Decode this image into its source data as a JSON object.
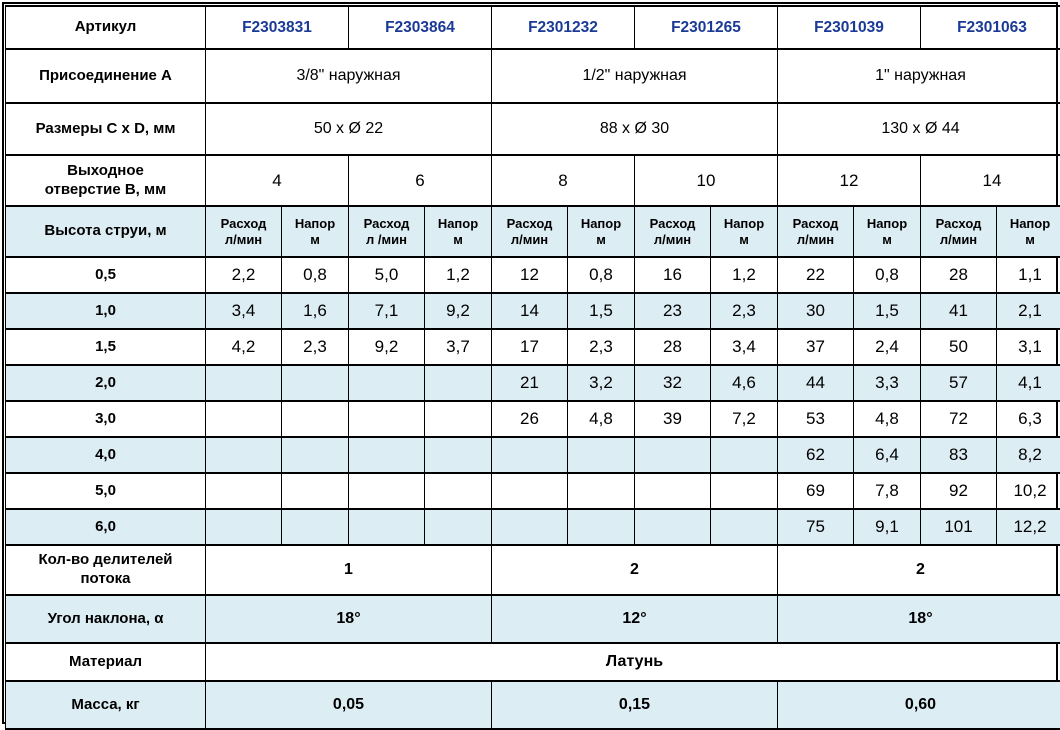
{
  "header": {
    "article": {
      "label": "Артикул",
      "codes": [
        "F2303831",
        "F2303864",
        "F2301232",
        "F2301265",
        "F2301039",
        "F2301063"
      ]
    },
    "connection": {
      "label": "Присоединение A",
      "values": [
        "3/8\" наружная",
        "1/2\" наружная",
        "1\" наружная"
      ]
    },
    "dimensions": {
      "label": "Размеры C x D, мм",
      "values": [
        "50 x Ø 22",
        "88 x Ø 30",
        "130 x Ø 44"
      ]
    },
    "outlet": {
      "label": "Выходное\nотверстие B, мм",
      "values": [
        "4",
        "6",
        "8",
        "10",
        "12",
        "14"
      ]
    },
    "jet": {
      "label": "Высота струи, м",
      "subcols": [
        "Расход\nл/мин",
        "Напор\nм",
        "Расход\nл /мин",
        "Напор\nм",
        "Расход\nл/мин",
        "Напор\nм",
        "Расход\nл/мин",
        "Напор\nм",
        "Расход\nл/мин",
        "Напор\nм",
        "Расход\nл/мин",
        "Напор\nм"
      ]
    }
  },
  "data_rows": [
    {
      "height": "0,5",
      "values": [
        "2,2",
        "0,8",
        "5,0",
        "1,2",
        "12",
        "0,8",
        "16",
        "1,2",
        "22",
        "0,8",
        "28",
        "1,1"
      ]
    },
    {
      "height": "1,0",
      "values": [
        "3,4",
        "1,6",
        "7,1",
        "9,2",
        "14",
        "1,5",
        "23",
        "2,3",
        "30",
        "1,5",
        "41",
        "2,1"
      ]
    },
    {
      "height": "1,5",
      "values": [
        "4,2",
        "2,3",
        "9,2",
        "3,7",
        "17",
        "2,3",
        "28",
        "3,4",
        "37",
        "2,4",
        "50",
        "3,1"
      ]
    },
    {
      "height": "2,0",
      "values": [
        "",
        "",
        "",
        "",
        "21",
        "3,2",
        "32",
        "4,6",
        "44",
        "3,3",
        "57",
        "4,1"
      ]
    },
    {
      "height": "3,0",
      "values": [
        "",
        "",
        "",
        "",
        "26",
        "4,8",
        "39",
        "7,2",
        "53",
        "4,8",
        "72",
        "6,3"
      ]
    },
    {
      "height": "4,0",
      "values": [
        "",
        "",
        "",
        "",
        "",
        "",
        "",
        "",
        "62",
        "6,4",
        "83",
        "8,2"
      ]
    },
    {
      "height": "5,0",
      "values": [
        "",
        "",
        "",
        "",
        "",
        "",
        "",
        "",
        "69",
        "7,8",
        "92",
        "10,2"
      ]
    },
    {
      "height": "6,0",
      "values": [
        "",
        "",
        "",
        "",
        "",
        "",
        "",
        "",
        "75",
        "9,1",
        "101",
        "12,2"
      ]
    }
  ],
  "footer": {
    "dividers": {
      "label": "Кол-во делителей\nпотока",
      "values": [
        "1",
        "2",
        "2"
      ]
    },
    "angle": {
      "label": "Угол наклона, α",
      "values": [
        "18°",
        "12°",
        "18°"
      ]
    },
    "material": {
      "label": "Материал",
      "value": "Латунь"
    },
    "mass": {
      "label": "Масса, кг",
      "values": [
        "0,05",
        "0,15",
        "0,60"
      ]
    }
  },
  "colors": {
    "code_text": "#1b3a96",
    "row_highlight": "#ddedf4",
    "border": "#000000",
    "background": "#ffffff"
  }
}
